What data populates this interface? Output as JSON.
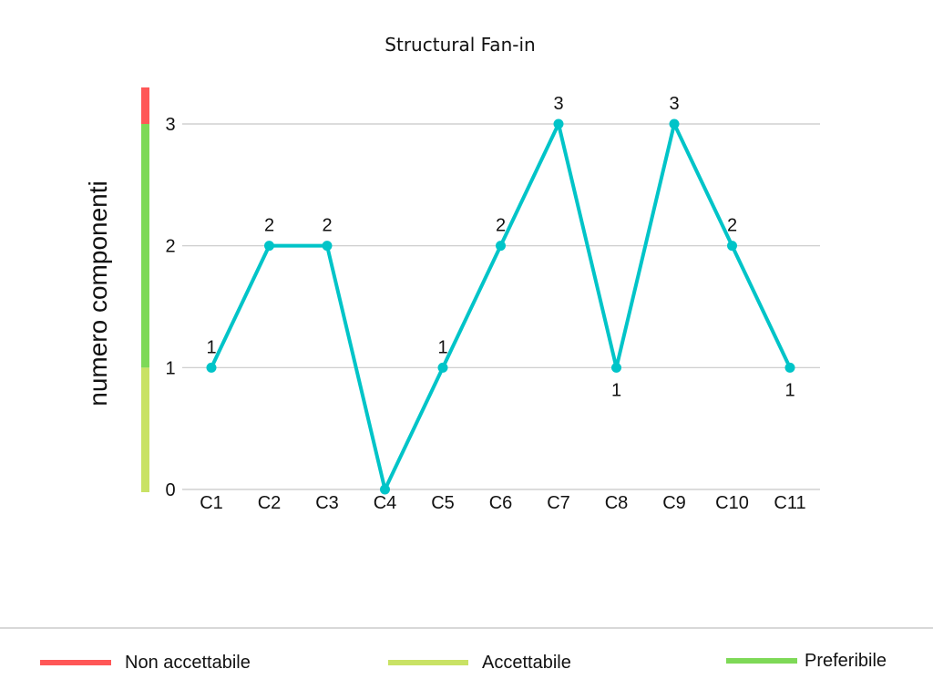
{
  "chart_data": {
    "type": "line",
    "title": "Structural Fan-in",
    "xlabel": "",
    "ylabel": "numero componenti",
    "categories": [
      "C1",
      "C2",
      "C3",
      "C4",
      "C5",
      "C6",
      "C7",
      "C8",
      "C9",
      "C10",
      "C11"
    ],
    "series": [
      {
        "values": [
          1,
          2,
          2,
          0,
          1,
          2,
          3,
          1,
          3,
          2,
          1
        ],
        "color": "#00c4c8"
      }
    ],
    "data_labels": true,
    "ylim": [
      0,
      3
    ],
    "yticks": [
      0,
      1,
      2,
      3
    ],
    "grid": true,
    "threshold_bar": [
      {
        "from": 0,
        "to": 1,
        "color": "#c9e265"
      },
      {
        "from": 1,
        "to": 3,
        "color": "#7ed957"
      },
      {
        "from": 3,
        "to": 3.3,
        "color": "#ff5757"
      }
    ],
    "legend": {
      "position": "bottom",
      "items": [
        {
          "label": "Non accettabile",
          "color": "#ff5757"
        },
        {
          "label": "Accettabile",
          "color": "#c9e265"
        },
        {
          "label": "Preferibile",
          "color": "#7ed957"
        }
      ]
    }
  }
}
